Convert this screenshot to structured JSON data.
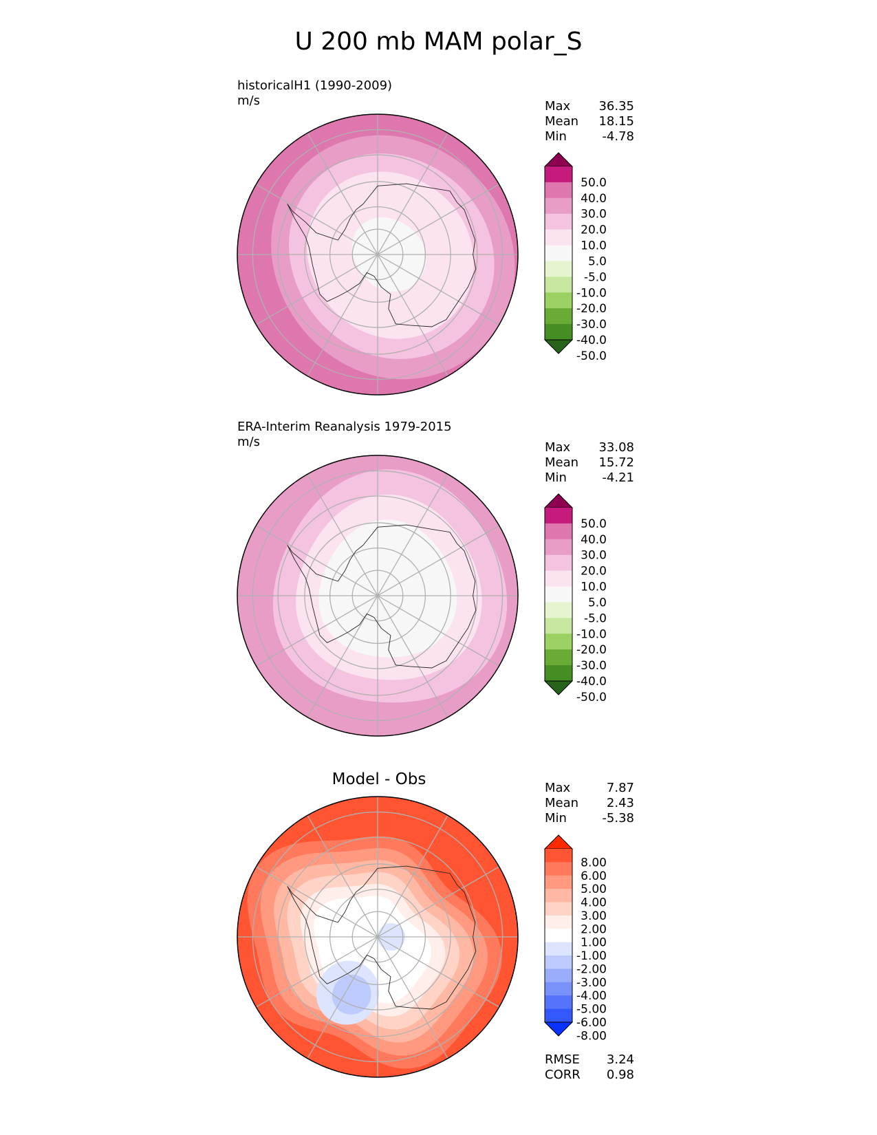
{
  "title": "U 200 mb MAM polar_S",
  "panels": [
    {
      "title": "historicalH1 (1990-2009)",
      "units": "m/s",
      "center_title": "",
      "stats": [
        {
          "label": "Max",
          "value": "36.35"
        },
        {
          "label": "Mean",
          "value": "18.15"
        },
        {
          "label": "Min",
          "value": "-4.78"
        }
      ],
      "colorbar": {
        "labels": [
          "50.0",
          "40.0",
          "30.0",
          "20.0",
          "10.0",
          "5.0",
          "-5.0",
          "-10.0",
          "-20.0",
          "-30.0",
          "-40.0",
          "-50.0"
        ],
        "colors": [
          "#8e0152",
          "#c51b7d",
          "#de77ae",
          "#e89dc7",
          "#f4c3e0",
          "#fbe4ef",
          "#f7f7f7",
          "#e6f5d0",
          "#c7e6a0",
          "#9bd062",
          "#6aab36",
          "#468e23",
          "#276419"
        ]
      },
      "field": {
        "pole_value": "0 to 5",
        "rings": [
          "#f7f7f7",
          "#fbe4ef",
          "#f4c3e0",
          "#e89dc7",
          "#de77ae"
        ]
      }
    },
    {
      "title": "ERA-Interim Reanalysis 1979-2015",
      "units": "m/s",
      "center_title": "",
      "stats": [
        {
          "label": "Max",
          "value": "33.08"
        },
        {
          "label": "Mean",
          "value": "15.72"
        },
        {
          "label": "Min",
          "value": "-4.21"
        }
      ],
      "colorbar": {
        "labels": [
          "50.0",
          "40.0",
          "30.0",
          "20.0",
          "10.0",
          "5.0",
          "-5.0",
          "-10.0",
          "-20.0",
          "-30.0",
          "-40.0",
          "-50.0"
        ],
        "colors": [
          "#8e0152",
          "#c51b7d",
          "#de77ae",
          "#e89dc7",
          "#f4c3e0",
          "#fbe4ef",
          "#f7f7f7",
          "#e6f5d0",
          "#c7e6a0",
          "#9bd062",
          "#6aab36",
          "#468e23",
          "#276419"
        ]
      },
      "field": {
        "rings": [
          "#f7f7f7",
          "#fbe4ef",
          "#f4c3e0",
          "#e89dc7"
        ]
      }
    },
    {
      "title": "",
      "units": "",
      "center_title": "Model - Obs",
      "stats": [
        {
          "label": "Max",
          "value": "7.87"
        },
        {
          "label": "Mean",
          "value": "2.43"
        },
        {
          "label": "Min",
          "value": "-5.38"
        }
      ],
      "extra_stats": [
        {
          "label": "RMSE",
          "value": "3.24"
        },
        {
          "label": "CORR",
          "value": "0.98"
        }
      ],
      "colorbar": {
        "labels": [
          "8.00",
          "6.00",
          "5.00",
          "4.00",
          "3.00",
          "2.00",
          "1.00",
          "-1.00",
          "-2.00",
          "-3.00",
          "-4.00",
          "-5.00",
          "-6.00",
          "-8.00"
        ],
        "colors": [
          "#ff2a00",
          "#ff5533",
          "#ff7a5c",
          "#ff9a80",
          "#ffb8a3",
          "#ffd4c7",
          "#ffeeea",
          "#ffffff",
          "#dde4fd",
          "#bccbfc",
          "#99adfb",
          "#7892fa",
          "#5674f9",
          "#3457f9",
          "#0a32ff"
        ]
      },
      "field": {
        "rings": [
          "#ffffff",
          "#ffeeea",
          "#ffd4c7",
          "#ffb8a3",
          "#ff9a80",
          "#ff7a5c",
          "#ff5533"
        ]
      }
    }
  ]
}
